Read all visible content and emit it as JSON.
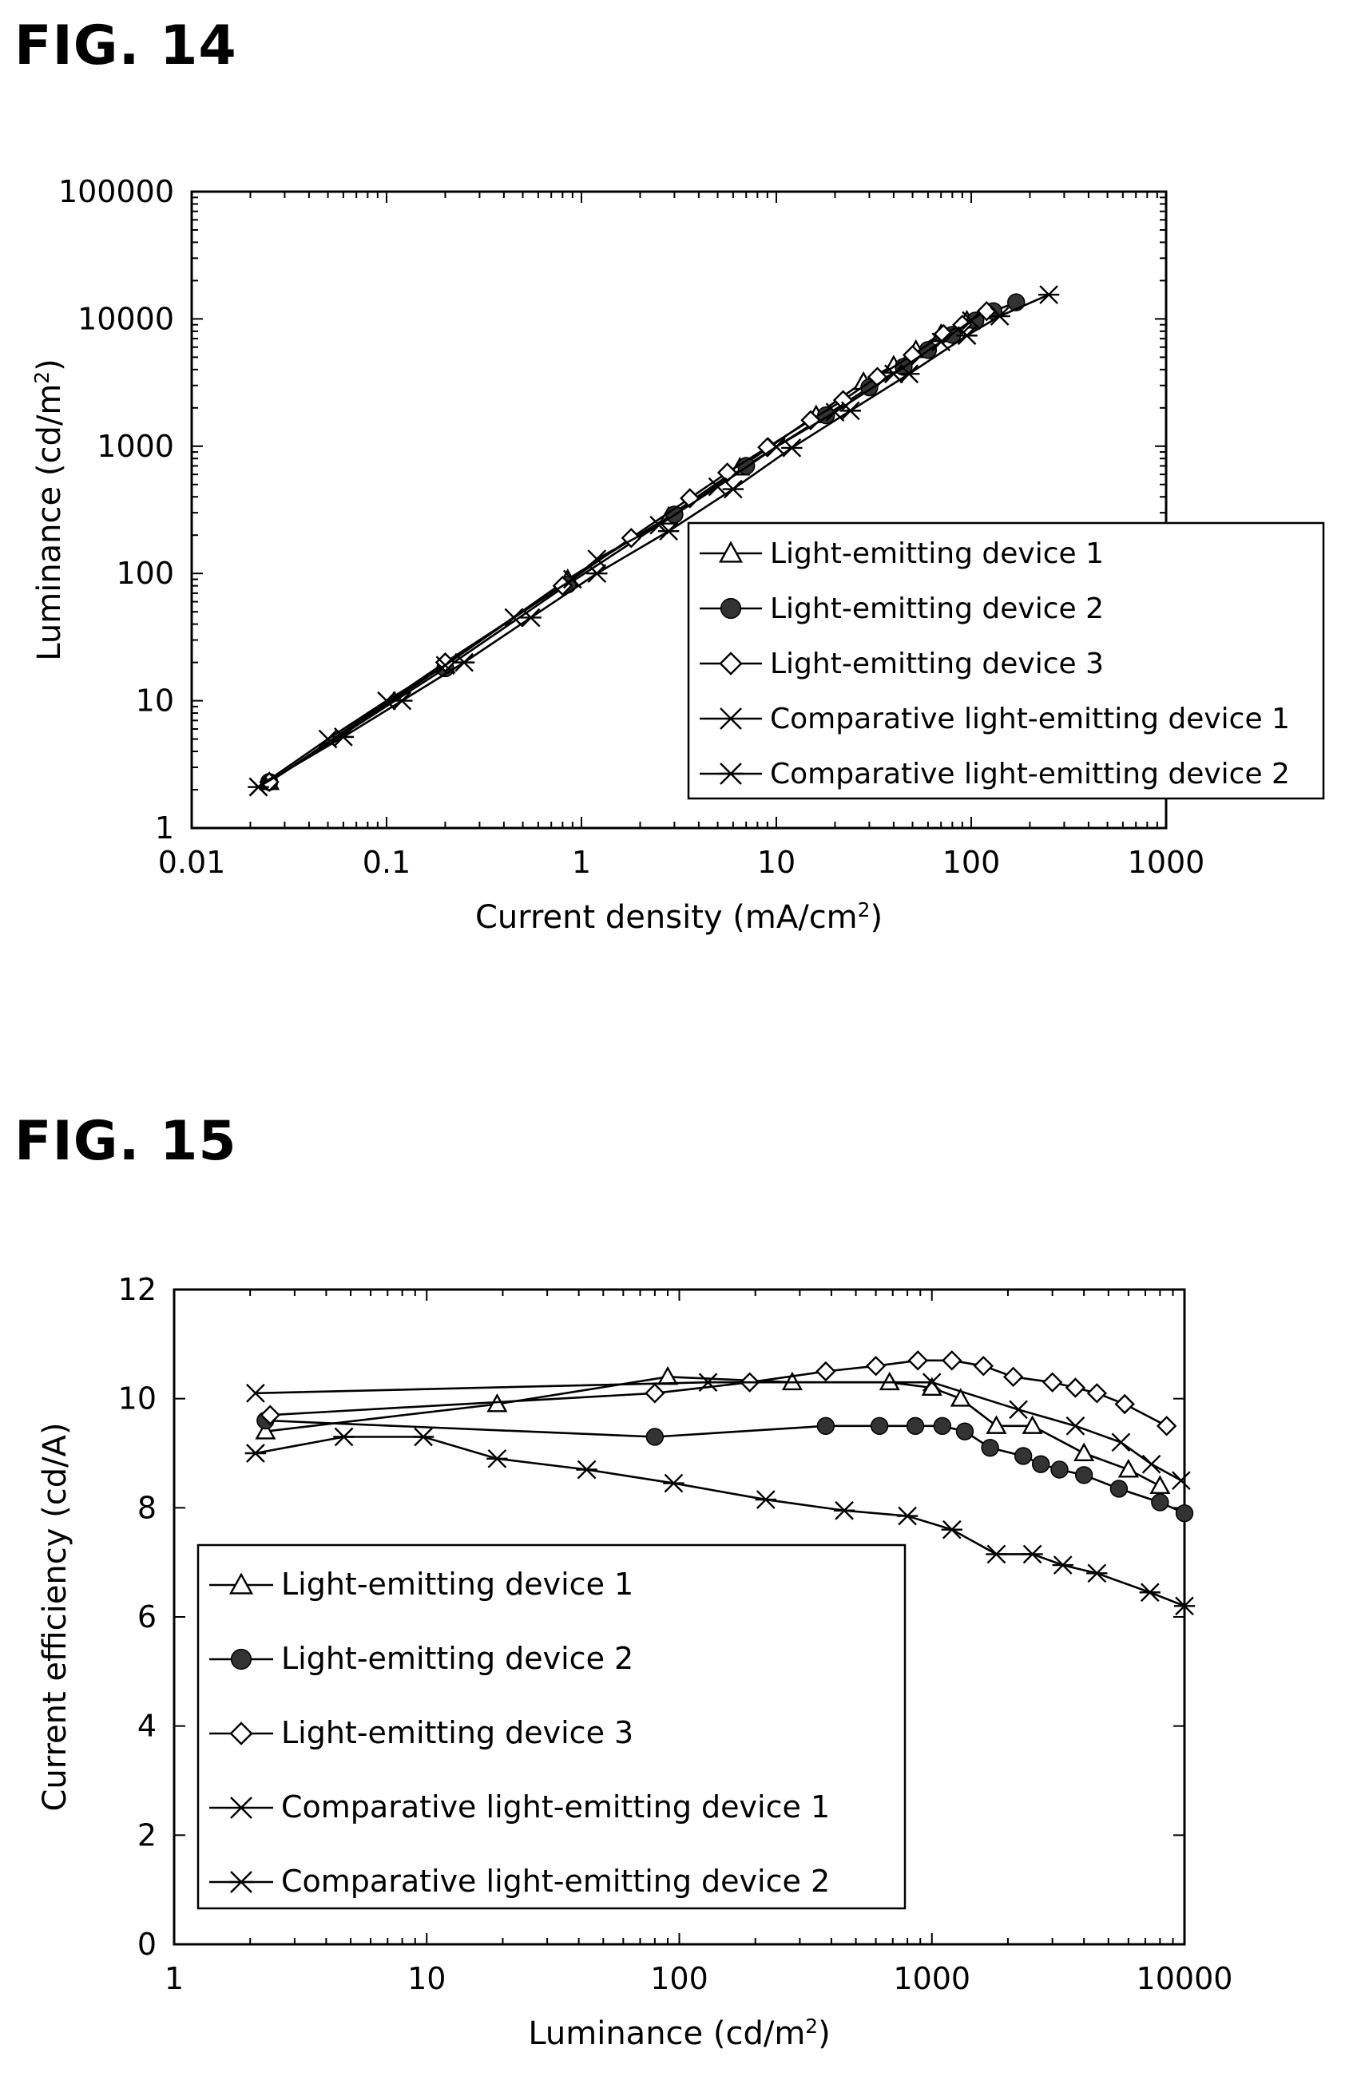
{
  "figures": [
    {
      "label": "FIG. 14"
    },
    {
      "label": "FIG. 15"
    }
  ],
  "chart_data": [
    {
      "type": "line",
      "xlabel": "Current density (mA/cm",
      "xlabel_sup": "2",
      "xlabel_end": ")",
      "ylabel": "Luminance (cd/m",
      "ylabel_sup": "2",
      "ylabel_end": ")",
      "xscale": "log",
      "yscale": "log",
      "xlim": [
        0.01,
        1000
      ],
      "ylim": [
        1,
        100000
      ],
      "xticks": [
        "0.01",
        "0.1",
        "1",
        "10",
        "100",
        "1000"
      ],
      "yticks": [
        "1",
        "10",
        "100",
        "1000",
        "10000",
        "100000"
      ],
      "legend_position": "bottom-right",
      "series": [
        {
          "name": "Light-emitting device 1",
          "marker": "triangle-open",
          "x": [
            0.025,
            0.2,
            0.85,
            2.8,
            6.5,
            16,
            28,
            40,
            52,
            70,
            95
          ],
          "y": [
            2.3,
            19,
            90,
            280,
            680,
            1750,
            3200,
            4300,
            5700,
            7600,
            9700
          ]
        },
        {
          "name": "Light-emitting device 2",
          "marker": "circle-filled",
          "x": [
            0.025,
            0.2,
            0.85,
            3.0,
            7.0,
            18,
            30,
            45,
            60,
            80,
            105,
            130,
            170
          ],
          "y": [
            2.3,
            18,
            82,
            290,
            700,
            1750,
            2900,
            4200,
            5700,
            7500,
            9700,
            11500,
            13500
          ]
        },
        {
          "name": "Light-emitting device 3",
          "marker": "diamond-open",
          "x": [
            0.025,
            0.2,
            0.8,
            1.8,
            3.6,
            5.6,
            9.0,
            15,
            22,
            33,
            50,
            72,
            90,
            120
          ],
          "y": [
            2.3,
            20,
            80,
            190,
            390,
            620,
            980,
            1600,
            2300,
            3500,
            5200,
            7600,
            9000,
            11500
          ]
        },
        {
          "name": "Comparative light-emitting device 1",
          "marker": "x",
          "x": [
            0.022,
            0.05,
            0.1,
            0.2,
            0.45,
            0.9,
            1.2,
            2.5,
            5.0,
            10,
            20,
            40,
            70,
            100
          ],
          "y": [
            2.1,
            5.0,
            10,
            19,
            45,
            90,
            130,
            240,
            480,
            990,
            1850,
            3700,
            6600,
            9700
          ]
        },
        {
          "name": "Comparative light-emitting device 2",
          "marker": "asterisk",
          "x": [
            0.022,
            0.06,
            0.12,
            0.25,
            0.55,
            1.2,
            2.8,
            6.0,
            12,
            24,
            48,
            95,
            140,
            250
          ],
          "y": [
            2.1,
            5.2,
            10,
            20,
            45,
            100,
            215,
            460,
            970,
            1900,
            3700,
            7400,
            10500,
            15500
          ]
        }
      ]
    },
    {
      "type": "line",
      "xlabel": "Luminance (cd/m",
      "xlabel_sup": "2",
      "xlabel_end": ")",
      "ylabel": "Current efficiency (cd/A)",
      "xscale": "log",
      "yscale": "linear",
      "xlim": [
        1,
        10000
      ],
      "ylim": [
        0,
        12
      ],
      "xticks": [
        "1",
        "10",
        "100",
        "1000",
        "10000"
      ],
      "yticks": [
        "0",
        "2",
        "4",
        "6",
        "8",
        "10",
        "12"
      ],
      "legend_position": "bottom-left",
      "series": [
        {
          "name": "Light-emitting device 1",
          "marker": "triangle-open",
          "x": [
            2.3,
            19,
            90,
            280,
            680,
            1000,
            1300,
            1800,
            2500,
            4000,
            6000,
            8000
          ],
          "y": [
            9.4,
            9.9,
            10.4,
            10.3,
            10.3,
            10.2,
            10.0,
            9.5,
            9.5,
            9.0,
            8.7,
            8.4
          ]
        },
        {
          "name": "Light-emitting device 2",
          "marker": "circle-filled",
          "x": [
            2.3,
            80,
            380,
            620,
            860,
            1100,
            1350,
            1700,
            2300,
            2700,
            3200,
            4000,
            5500,
            8000,
            10000
          ],
          "y": [
            9.6,
            9.3,
            9.5,
            9.5,
            9.5,
            9.5,
            9.4,
            9.1,
            8.95,
            8.8,
            8.7,
            8.6,
            8.35,
            8.1,
            7.9
          ]
        },
        {
          "name": "Light-emitting device 3",
          "marker": "diamond-open",
          "x": [
            2.4,
            80,
            190,
            380,
            600,
            880,
            1200,
            1600,
            2100,
            3000,
            3700,
            4500,
            5800,
            8500
          ],
          "y": [
            9.7,
            10.1,
            10.3,
            10.5,
            10.6,
            10.7,
            10.7,
            10.6,
            10.4,
            10.3,
            10.2,
            10.1,
            9.9,
            9.5
          ]
        },
        {
          "name": "Comparative light-emitting device 1",
          "marker": "x",
          "x": [
            2.1,
            130,
            1000,
            2200,
            3700,
            5600,
            7400,
            9700
          ],
          "y": [
            10.1,
            10.3,
            10.3,
            9.8,
            9.5,
            9.2,
            8.8,
            8.5
          ]
        },
        {
          "name": "Comparative light-emitting device 2",
          "marker": "asterisk",
          "x": [
            2.1,
            4.7,
            9.7,
            19,
            43,
            95,
            220,
            450,
            800,
            1200,
            1800,
            2500,
            3300,
            4500,
            7300,
            10000
          ],
          "y": [
            9.0,
            9.3,
            9.3,
            8.9,
            8.7,
            8.45,
            8.15,
            7.95,
            7.85,
            7.6,
            7.15,
            7.15,
            6.95,
            6.8,
            6.45,
            6.2
          ]
        }
      ]
    }
  ]
}
